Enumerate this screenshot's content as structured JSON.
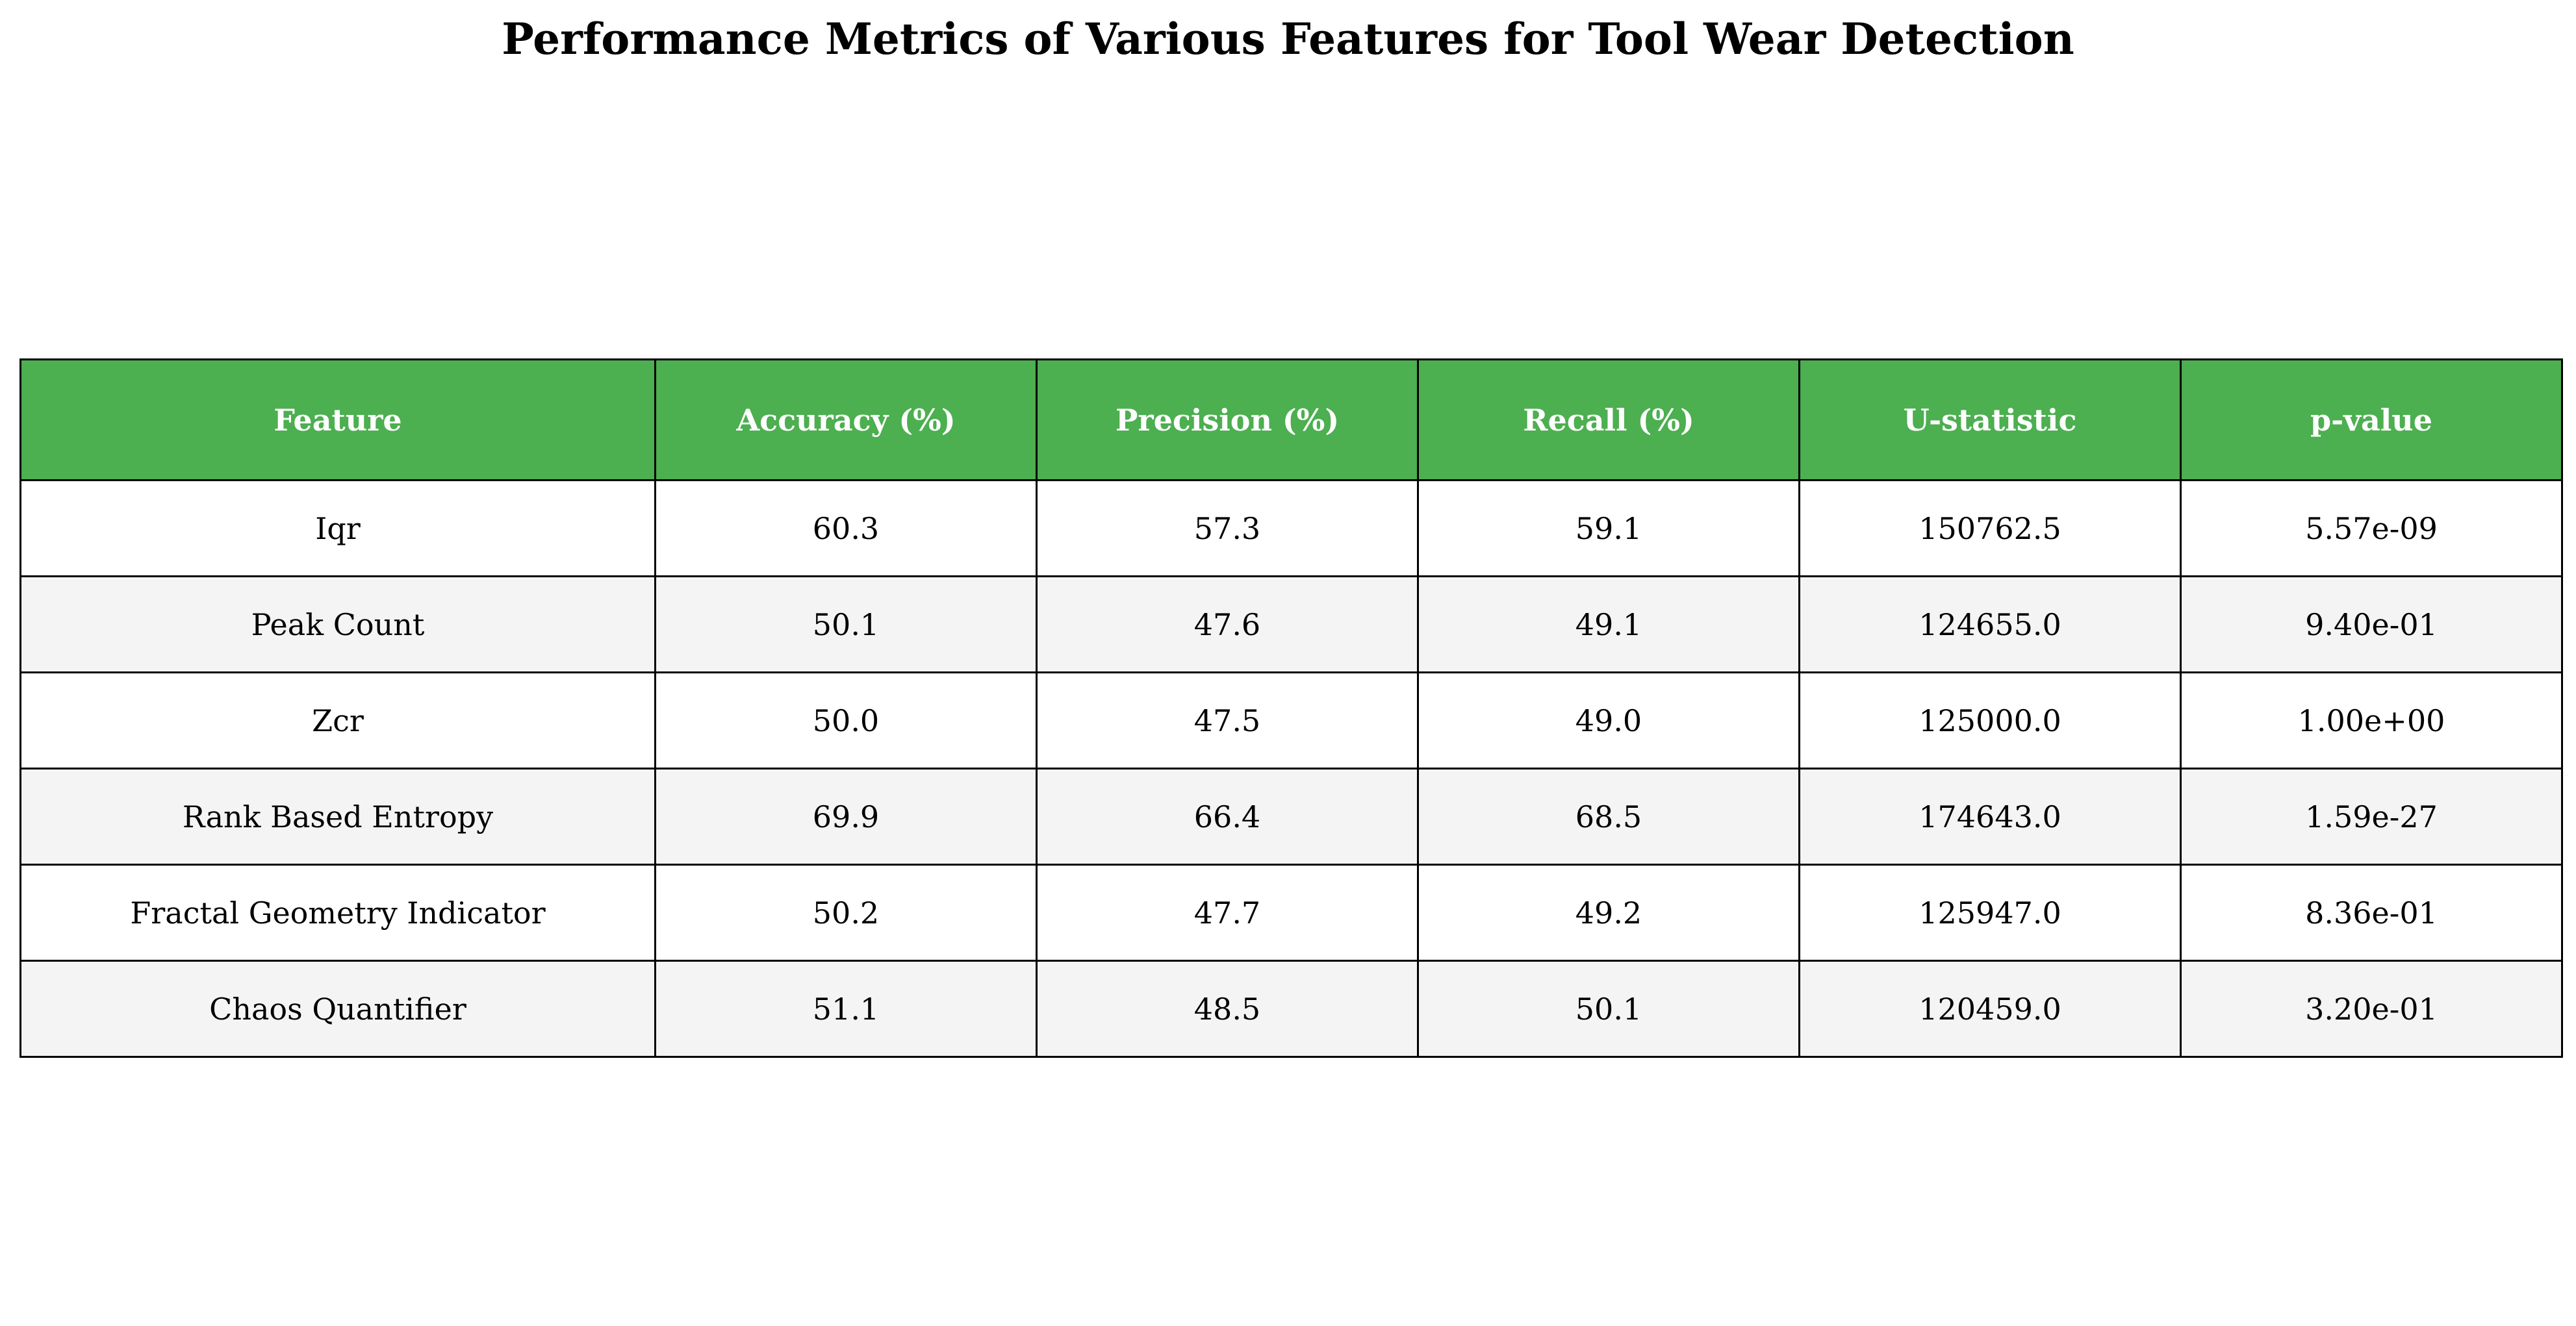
{
  "title": "Performance Metrics of Various Features for Tool Wear Detection",
  "colors": {
    "header_bg": "#4caf50",
    "header_text": "#ffffff",
    "row_even_bg": "#ffffff",
    "row_odd_bg": "#f4f4f4",
    "border": "#000000"
  },
  "chart_data": {
    "type": "table",
    "title": "Performance Metrics of Various Features for Tool Wear Detection",
    "columns": [
      "Feature",
      "Accuracy (%)",
      "Precision (%)",
      "Recall (%)",
      "U-statistic",
      "p-value"
    ],
    "rows": [
      [
        "Iqr",
        "60.3",
        "57.3",
        "59.1",
        "150762.5",
        "5.57e-09"
      ],
      [
        "Peak Count",
        "50.1",
        "47.6",
        "49.1",
        "124655.0",
        "9.40e-01"
      ],
      [
        "Zcr",
        "50.0",
        "47.5",
        "49.0",
        "125000.0",
        "1.00e+00"
      ],
      [
        "Rank Based Entropy",
        "69.9",
        "66.4",
        "68.5",
        "174643.0",
        "1.59e-27"
      ],
      [
        "Fractal Geometry Indicator",
        "50.2",
        "47.7",
        "49.2",
        "125947.0",
        "8.36e-01"
      ],
      [
        "Chaos Quantifier",
        "51.1",
        "48.5",
        "50.1",
        "120459.0",
        "3.20e-01"
      ]
    ]
  }
}
